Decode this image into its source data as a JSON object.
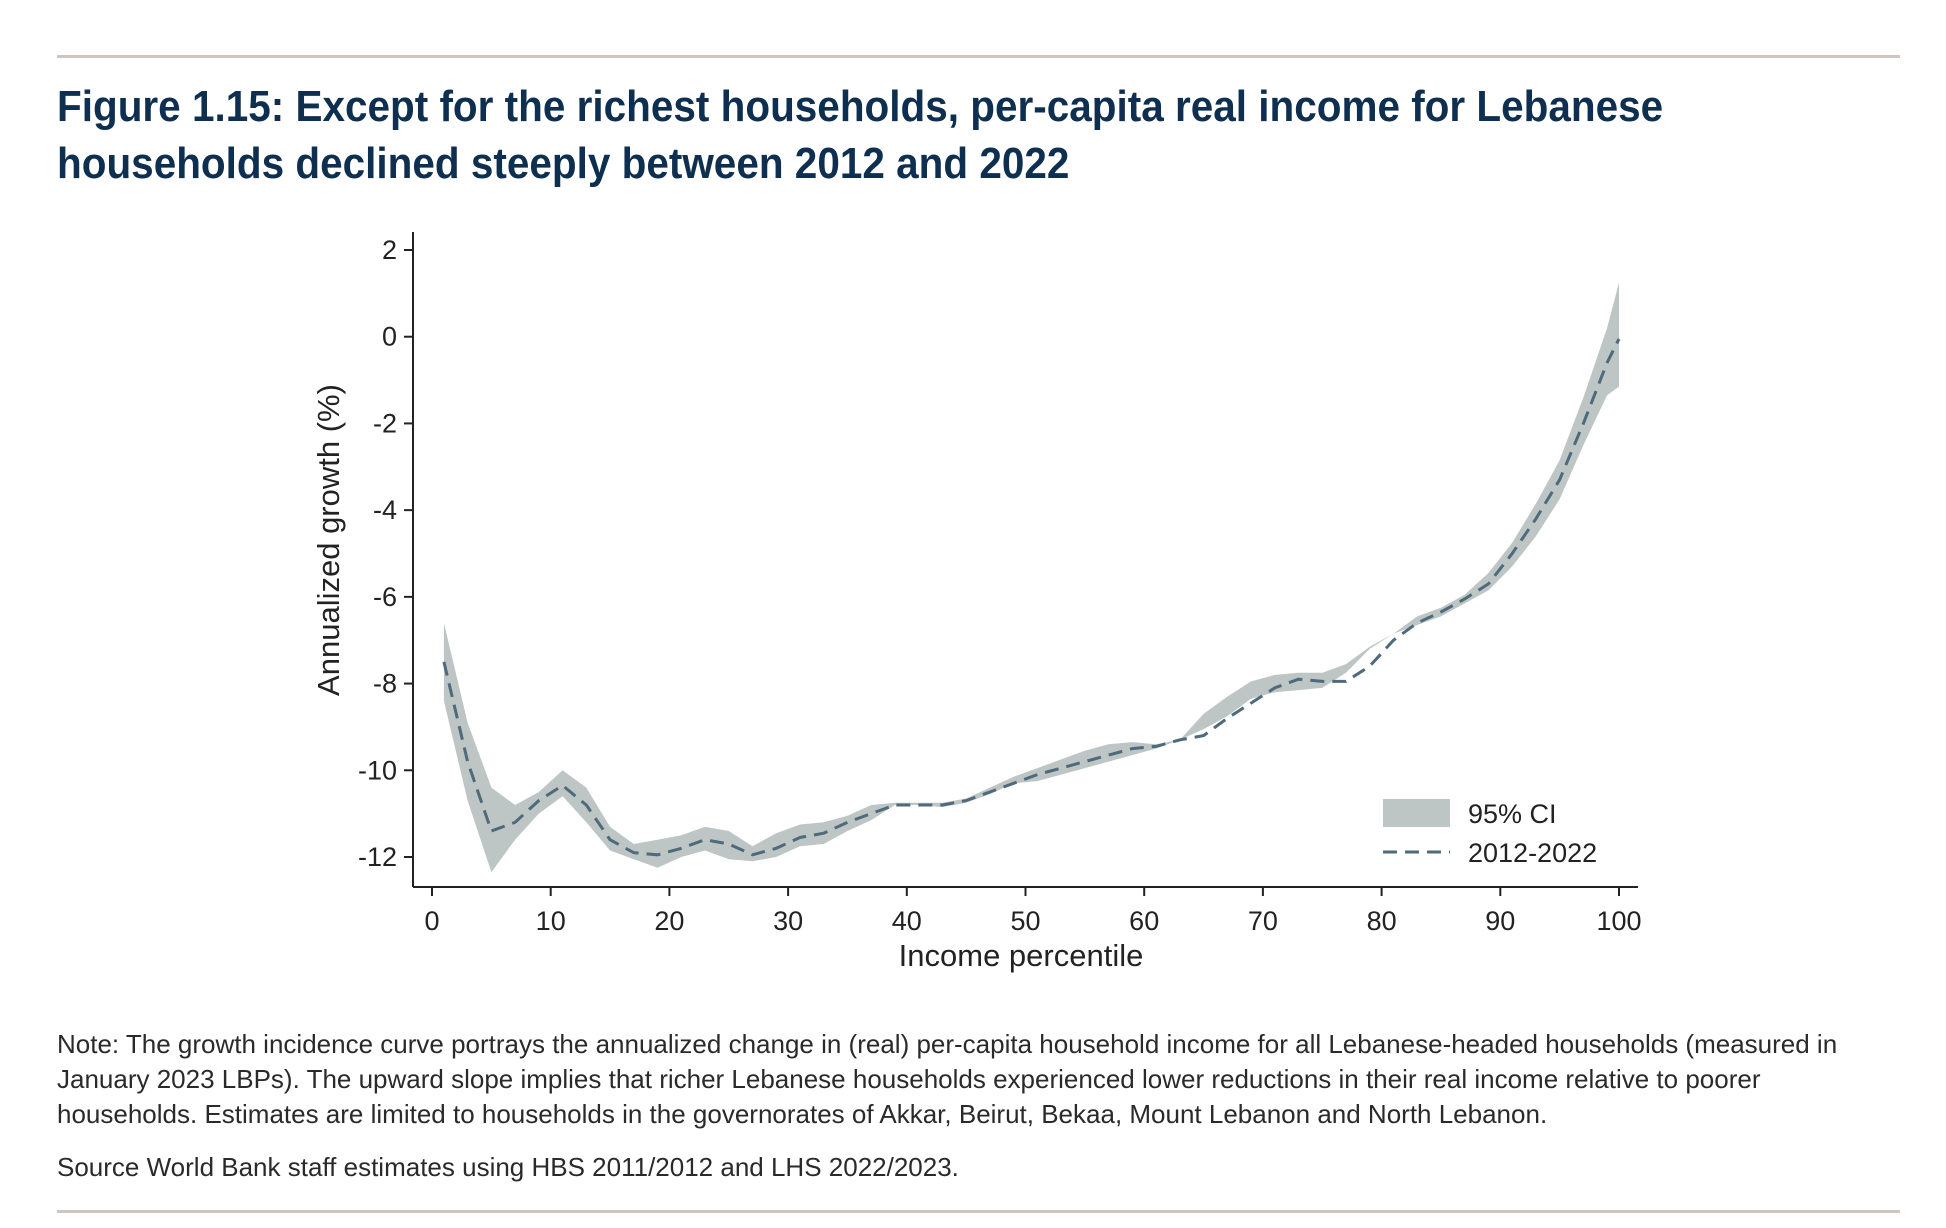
{
  "figure": {
    "title": "Figure 1.15: Except for the richest households, per-capita real income for Lebanese households declined steeply between 2012 and 2022",
    "note": "Note: The growth incidence curve portrays the annualized change in (real) per-capita household income for all Lebanese-headed households (measured in January 2023 LBPs). The upward slope implies that richer Lebanese households experienced lower reductions in their real income relative to poorer households. Estimates are limited to households in the governorates of Akkar, Beirut, Bekaa, Mount Lebanon and North Lebanon.",
    "source": "Source World Bank staff estimates using HBS 2011/2012 and LHS 2022/2023."
  },
  "colors": {
    "title": "#0e2f50",
    "line": "#4f6a7a",
    "ci_band": "#bec6c5",
    "rule": "#cfc5c1"
  },
  "chart_data": {
    "type": "line",
    "title": "",
    "xlabel": "Income percentile",
    "ylabel": "Annualized growth (%)",
    "xlim": [
      0,
      100
    ],
    "ylim": [
      -12.7,
      2.4
    ],
    "xticks": [
      0,
      10,
      20,
      30,
      40,
      50,
      60,
      70,
      80,
      90,
      100
    ],
    "yticks": [
      2,
      0,
      -2,
      -4,
      -6,
      -8,
      -10,
      -12
    ],
    "grid": false,
    "legend": {
      "position": "bottom-right",
      "entries": [
        "95% CI",
        "2012-2022"
      ]
    },
    "series": [
      {
        "name": "2012-2022",
        "style": "dashed",
        "x": [
          1,
          3,
          5,
          7,
          9,
          11,
          13,
          15,
          17,
          19,
          21,
          23,
          25,
          27,
          29,
          31,
          33,
          35,
          37,
          39,
          41,
          43,
          45,
          47,
          49,
          51,
          53,
          55,
          57,
          59,
          61,
          63,
          65,
          67,
          69,
          71,
          73,
          75,
          77,
          79,
          81,
          83,
          85,
          87,
          89,
          91,
          93,
          95,
          97,
          99,
          100
        ],
        "y": [
          -7.5,
          -9.8,
          -11.4,
          -11.2,
          -10.7,
          -10.35,
          -10.8,
          -11.6,
          -11.9,
          -11.95,
          -11.8,
          -11.6,
          -11.7,
          -11.95,
          -11.8,
          -11.55,
          -11.45,
          -11.2,
          -11.0,
          -10.8,
          -10.8,
          -10.8,
          -10.7,
          -10.5,
          -10.3,
          -10.1,
          -9.95,
          -9.8,
          -9.65,
          -9.5,
          -9.45,
          -9.3,
          -9.2,
          -8.8,
          -8.45,
          -8.1,
          -7.9,
          -7.95,
          -7.95,
          -7.6,
          -7.0,
          -6.6,
          -6.35,
          -6.05,
          -5.7,
          -5.0,
          -4.2,
          -3.3,
          -2.0,
          -0.6,
          -0.05
        ]
      },
      {
        "name": "95% CI",
        "style": "band",
        "x": [
          1,
          3,
          5,
          7,
          9,
          11,
          13,
          15,
          17,
          19,
          21,
          23,
          25,
          27,
          29,
          31,
          33,
          35,
          37,
          39,
          41,
          43,
          45,
          47,
          49,
          51,
          53,
          55,
          57,
          59,
          61,
          63,
          65,
          67,
          69,
          71,
          73,
          75,
          77,
          79,
          81,
          83,
          85,
          87,
          89,
          91,
          93,
          95,
          97,
          99,
          100
        ],
        "upper": [
          -6.6,
          -8.9,
          -10.4,
          -10.8,
          -10.5,
          -10.0,
          -10.4,
          -11.3,
          -11.7,
          -11.6,
          -11.5,
          -11.3,
          -11.4,
          -11.75,
          -11.45,
          -11.25,
          -11.2,
          -11.05,
          -10.8,
          -10.75,
          -10.75,
          -10.75,
          -10.65,
          -10.4,
          -10.15,
          -9.95,
          -9.75,
          -9.55,
          -9.4,
          -9.35,
          -9.4,
          -9.3,
          -8.7,
          -8.3,
          -7.95,
          -7.8,
          -7.75,
          -7.75,
          -7.55,
          -7.15,
          -6.85,
          -6.45,
          -6.25,
          -5.95,
          -5.45,
          -4.75,
          -3.85,
          -2.85,
          -1.4,
          0.2,
          1.25
        ],
        "lower": [
          -8.4,
          -10.7,
          -12.35,
          -11.6,
          -11.0,
          -10.6,
          -11.2,
          -11.85,
          -12.05,
          -12.25,
          -12.0,
          -11.85,
          -12.05,
          -12.1,
          -12.0,
          -11.75,
          -11.7,
          -11.4,
          -11.15,
          -10.8,
          -10.8,
          -10.85,
          -10.75,
          -10.55,
          -10.3,
          -10.25,
          -10.1,
          -9.95,
          -9.8,
          -9.65,
          -9.5,
          -9.3,
          -9.05,
          -8.75,
          -8.35,
          -8.2,
          -8.15,
          -8.1,
          -7.75,
          -7.2,
          -6.85,
          -6.65,
          -6.45,
          -6.15,
          -5.85,
          -5.3,
          -4.6,
          -3.75,
          -2.5,
          -1.35,
          -1.15
        ]
      }
    ]
  }
}
